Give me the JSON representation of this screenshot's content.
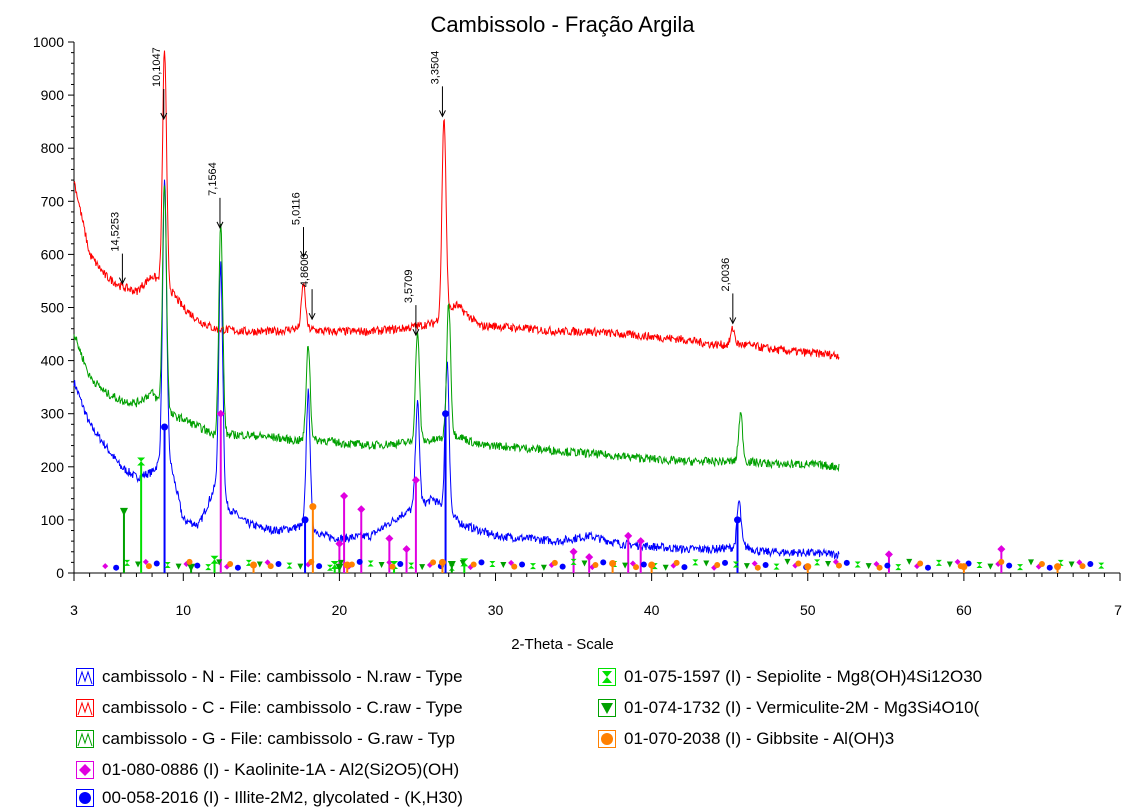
{
  "chart_data": {
    "type": "line",
    "title": "Cambissolo - Fração Argila",
    "xlabel": "2-Theta - Scale",
    "ylabel": "",
    "xlim": [
      3,
      70
    ],
    "ylim": [
      0,
      1000
    ],
    "x_ticks": [
      "3",
      "10",
      "20",
      "30",
      "40",
      "50",
      "60",
      "7"
    ],
    "y_ticks": [
      "0",
      "100",
      "200",
      "300",
      "400",
      "500",
      "600",
      "700",
      "800",
      "900",
      "1000"
    ],
    "series": [
      {
        "name": "cambissolo - N - File: cambissolo - N.raw - Type",
        "color": "#0000ff",
        "baseline": [
          [
            3,
            360
          ],
          [
            4,
            280
          ],
          [
            5,
            240
          ],
          [
            6,
            200
          ],
          [
            7,
            180
          ],
          [
            8,
            190
          ],
          [
            9,
            230
          ],
          [
            10,
            100
          ],
          [
            11,
            90
          ],
          [
            12,
            160
          ],
          [
            13,
            120
          ],
          [
            14,
            95
          ],
          [
            15,
            85
          ],
          [
            16,
            80
          ],
          [
            17,
            85
          ],
          [
            18,
            90
          ],
          [
            19,
            70
          ],
          [
            20,
            65
          ],
          [
            22,
            70
          ],
          [
            24,
            110
          ],
          [
            26,
            140
          ],
          [
            27.5,
            100
          ],
          [
            28,
            90
          ],
          [
            30,
            70
          ],
          [
            32,
            65
          ],
          [
            34,
            60
          ],
          [
            36,
            70
          ],
          [
            38,
            55
          ],
          [
            40,
            50
          ],
          [
            42,
            45
          ],
          [
            44,
            45
          ],
          [
            46,
            50
          ],
          [
            47,
            40
          ],
          [
            50,
            38
          ],
          [
            52,
            35
          ]
        ],
        "peaks": [
          [
            8.8,
            735
          ],
          [
            12.4,
            580
          ],
          [
            18.0,
            340
          ],
          [
            25.0,
            320
          ],
          [
            26.9,
            400
          ],
          [
            45.6,
            135
          ]
        ]
      },
      {
        "name": "cambissolo - C - File: cambissolo - C.raw - Type",
        "color": "#ff0000",
        "baseline": [
          [
            3,
            740
          ],
          [
            4,
            600
          ],
          [
            5,
            560
          ],
          [
            6,
            540
          ],
          [
            7,
            530
          ],
          [
            8,
            560
          ],
          [
            9,
            540
          ],
          [
            10,
            500
          ],
          [
            11,
            475
          ],
          [
            12,
            460
          ],
          [
            14,
            455
          ],
          [
            16,
            455
          ],
          [
            17,
            460
          ],
          [
            18,
            460
          ],
          [
            19,
            455
          ],
          [
            20,
            455
          ],
          [
            22,
            455
          ],
          [
            24,
            460
          ],
          [
            25,
            465
          ],
          [
            26,
            470
          ],
          [
            27.5,
            505
          ],
          [
            29,
            465
          ],
          [
            30,
            465
          ],
          [
            32,
            460
          ],
          [
            34,
            455
          ],
          [
            36,
            455
          ],
          [
            38,
            450
          ],
          [
            40,
            445
          ],
          [
            42,
            440
          ],
          [
            44,
            430
          ],
          [
            46,
            430
          ],
          [
            48,
            420
          ],
          [
            50,
            415
          ],
          [
            52,
            410
          ]
        ],
        "peaks": [
          [
            8.8,
            985
          ],
          [
            17.7,
            545
          ],
          [
            26.7,
            860
          ],
          [
            45.2,
            460
          ]
        ]
      },
      {
        "name": "cambissolo - G - File: cambissolo - G.raw - Typ",
        "color": "#00a000",
        "baseline": [
          [
            3,
            450
          ],
          [
            4,
            370
          ],
          [
            5,
            340
          ],
          [
            6,
            325
          ],
          [
            7,
            320
          ],
          [
            8,
            340
          ],
          [
            9,
            300
          ],
          [
            10,
            290
          ],
          [
            11,
            275
          ],
          [
            12,
            260
          ],
          [
            14,
            260
          ],
          [
            16,
            255
          ],
          [
            17,
            250
          ],
          [
            18,
            250
          ],
          [
            19,
            250
          ],
          [
            20,
            245
          ],
          [
            22,
            240
          ],
          [
            24,
            245
          ],
          [
            26,
            250
          ],
          [
            27.5,
            260
          ],
          [
            29,
            240
          ],
          [
            30,
            240
          ],
          [
            32,
            235
          ],
          [
            34,
            230
          ],
          [
            36,
            225
          ],
          [
            38,
            220
          ],
          [
            40,
            215
          ],
          [
            42,
            210
          ],
          [
            44,
            210
          ],
          [
            46,
            210
          ],
          [
            48,
            205
          ],
          [
            50,
            205
          ],
          [
            52,
            200
          ]
        ],
        "peaks": [
          [
            8.8,
            735
          ],
          [
            12.4,
            655
          ],
          [
            18.0,
            430
          ],
          [
            25.0,
            455
          ],
          [
            27.0,
            510
          ],
          [
            45.7,
            300
          ]
        ]
      }
    ],
    "d_labels": [
      {
        "two_theta": 6.1,
        "label": "14,5253",
        "y": 545
      },
      {
        "two_theta": 8.75,
        "label": "10,1047",
        "y": 855
      },
      {
        "two_theta": 12.35,
        "label": "7,1564",
        "y": 650
      },
      {
        "two_theta": 17.7,
        "label": "5,0116",
        "y": 595
      },
      {
        "two_theta": 18.25,
        "label": "4,8600",
        "y": 478
      },
      {
        "two_theta": 24.9,
        "label": "3,5709",
        "y": 448
      },
      {
        "two_theta": 26.6,
        "label": "3,3504",
        "y": 860
      },
      {
        "two_theta": 45.2,
        "label": "2,0036",
        "y": 470
      }
    ],
    "reference_markers": [
      {
        "name": "01-080-0886 (I) - Kaolinite-1A - Al2(Si2O5)(OH)",
        "color": "#e000e0",
        "symbol": "diamond",
        "lines": [
          [
            12.4,
            300
          ],
          [
            20.0,
            55
          ],
          [
            20.3,
            145
          ],
          [
            21.4,
            120
          ],
          [
            23.2,
            65
          ],
          [
            24.9,
            175
          ],
          [
            24.3,
            45
          ],
          [
            35.0,
            40
          ],
          [
            36.0,
            30
          ],
          [
            38.5,
            70
          ],
          [
            39.3,
            60
          ],
          [
            55.2,
            35
          ],
          [
            62.4,
            45
          ]
        ]
      },
      {
        "name": "00-058-2016 (I) - Illite-2M2, glycolated - (K,H30)",
        "color": "#0000ff",
        "symbol": "circle",
        "lines": [
          [
            8.8,
            275
          ],
          [
            17.8,
            100
          ],
          [
            26.8,
            300
          ],
          [
            45.5,
            100
          ]
        ]
      },
      {
        "name": "01-075-1597 (I) - Sepiolite - Mg8(OH)4Si12O30",
        "color": "#00e000",
        "symbol": "hourglass",
        "lines": [
          [
            7.3,
            210
          ],
          [
            12.0,
            25
          ],
          [
            19.7,
            15
          ],
          [
            23.5,
            15
          ],
          [
            28.0,
            20
          ]
        ]
      },
      {
        "name": "01-074-1732 (I) - Vermiculite-2M - Mg3Si4O10(",
        "color": "#00a000",
        "symbol": "triangle-down",
        "lines": [
          [
            6.2,
            115
          ],
          [
            10.5,
            10
          ],
          [
            20.0,
            10
          ],
          [
            27.2,
            15
          ]
        ]
      },
      {
        "name": "01-070-2038 (I) - Gibbsite - Al(OH)3",
        "color": "#ff8000",
        "symbol": "circle",
        "lines": [
          [
            18.3,
            125
          ],
          [
            14.5,
            15
          ],
          [
            20.5,
            15
          ],
          [
            26.6,
            20
          ],
          [
            37.5,
            18
          ],
          [
            40.0,
            15
          ],
          [
            50.0,
            12
          ],
          [
            60.0,
            12
          ],
          [
            66.0,
            12
          ]
        ]
      }
    ]
  },
  "legend": [
    {
      "label": "cambissolo - N - File: cambissolo - N.raw - Type",
      "color": "#0000ff",
      "icon": "blue-pattern-icon"
    },
    {
      "label": "cambissolo - C - File: cambissolo - C.raw - Type",
      "color": "#ff0000",
      "icon": "red-pattern-icon"
    },
    {
      "label": "cambissolo - G - File: cambissolo - G.raw - Typ",
      "color": "#00a000",
      "icon": "green-pattern-icon"
    },
    {
      "label": "01-080-0886 (I) - Kaolinite-1A - Al2(Si2O5)(OH)",
      "color": "#e000e0",
      "icon": "diamond-icon"
    },
    {
      "label": "00-058-2016 (I) - Illite-2M2, glycolated - (K,H30)",
      "color": "#0000ff",
      "icon": "circle-icon"
    },
    {
      "label": "01-075-1597 (I) - Sepiolite - Mg8(OH)4Si12O30",
      "color": "#00e000",
      "icon": "hourglass-icon"
    },
    {
      "label": "01-074-1732 (I) - Vermiculite-2M - Mg3Si4O10(",
      "color": "#00a000",
      "icon": "triangle-down-icon"
    },
    {
      "label": "01-070-2038 (I) - Gibbsite - Al(OH)3",
      "color": "#ff8000",
      "icon": "circle-icon"
    }
  ]
}
